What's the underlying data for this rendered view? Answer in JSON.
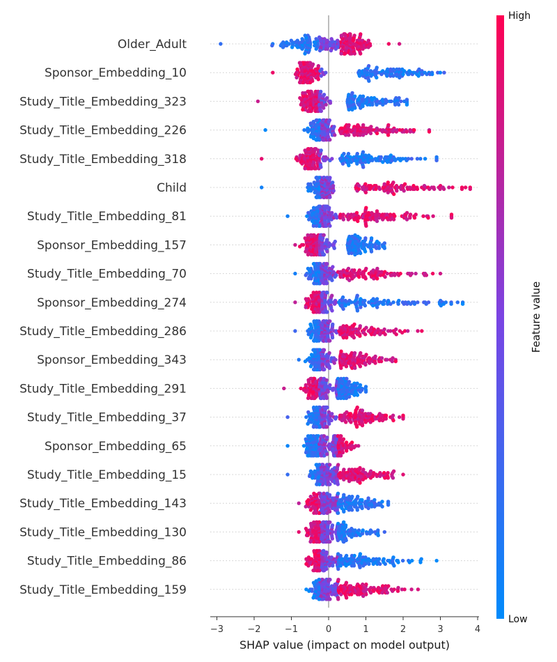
{
  "chart_data": {
    "type": "scatter",
    "subtype": "shap-beeswarm",
    "xlabel": "SHAP value (impact on model output)",
    "xlim": [
      -3.3,
      4.05
    ],
    "xticks": [
      -3,
      -2,
      -1,
      0,
      1,
      2,
      3,
      4
    ],
    "xtick_labels": [
      "−3",
      "−2",
      "−1",
      "0",
      "1",
      "2",
      "3",
      "4"
    ],
    "colorbar": {
      "title": "Feature value",
      "high_label": "High",
      "low_label": "Low",
      "high_color": "#ff0052",
      "low_color": "#008bfb"
    },
    "grid": false,
    "features": [
      {
        "name": "Older_Adult",
        "min": -2.9,
        "max": 1.9,
        "low_side": "neg",
        "peak": 0.6,
        "neg_peak": -0.5
      },
      {
        "name": "Sponsor_Embedding_10",
        "min": -1.5,
        "max": 3.1,
        "low_side": "pos",
        "peak": -0.6,
        "pos_peak": 0.9
      },
      {
        "name": "Study_Title_Embedding_323",
        "min": -1.9,
        "max": 2.1,
        "low_side": "pos",
        "peak": -0.4,
        "pos_peak": 0.6
      },
      {
        "name": "Study_Title_Embedding_226",
        "min": -1.7,
        "max": 2.7,
        "low_side": "neg",
        "peak": -0.2,
        "pos_peak": 0.4
      },
      {
        "name": "Study_Title_Embedding_318",
        "min": -1.8,
        "max": 2.9,
        "low_side": "pos",
        "peak": -0.4,
        "pos_peak": 0.4
      },
      {
        "name": "Child",
        "min": -1.8,
        "max": 3.8,
        "low_side": "neg",
        "peak": -0.2,
        "pos_peak": 0.8
      },
      {
        "name": "Study_Title_Embedding_81",
        "min": -1.1,
        "max": 3.3,
        "low_side": "neg",
        "peak": -0.2,
        "pos_peak": 0.4
      },
      {
        "name": "Sponsor_Embedding_157",
        "min": -0.9,
        "max": 1.5,
        "low_side": "pos",
        "peak": -0.3,
        "pos_peak": 0.6
      },
      {
        "name": "Study_Title_Embedding_70",
        "min": -0.9,
        "max": 3.0,
        "low_side": "neg",
        "peak": -0.2,
        "pos_peak": 0.4
      },
      {
        "name": "Sponsor_Embedding_274",
        "min": -0.9,
        "max": 3.6,
        "low_side": "pos",
        "peak": -0.2,
        "pos_peak": 0.4
      },
      {
        "name": "Study_Title_Embedding_286",
        "min": -0.9,
        "max": 2.5,
        "low_side": "neg",
        "peak": -0.2,
        "pos_peak": 0.4
      },
      {
        "name": "Sponsor_Embedding_343",
        "min": -0.8,
        "max": 1.8,
        "low_side": "neg",
        "peak": -0.2,
        "pos_peak": 0.4
      },
      {
        "name": "Study_Title_Embedding_291",
        "min": -1.2,
        "max": 1.0,
        "low_side": "pos",
        "peak": -0.3,
        "pos_peak": 0.3
      },
      {
        "name": "Study_Title_Embedding_37",
        "min": -1.1,
        "max": 2.0,
        "low_side": "neg",
        "peak": -0.2,
        "pos_peak": 0.4
      },
      {
        "name": "Sponsor_Embedding_65",
        "min": -1.1,
        "max": 0.8,
        "low_side": "neg",
        "peak": -0.3,
        "pos_peak": 0.2
      },
      {
        "name": "Study_Title_Embedding_15",
        "min": -1.1,
        "max": 2.0,
        "low_side": "neg",
        "peak": -0.1,
        "pos_peak": 0.3
      },
      {
        "name": "Study_Title_Embedding_143",
        "min": -0.8,
        "max": 1.6,
        "low_side": "pos",
        "peak": -0.2,
        "pos_peak": 0.3
      },
      {
        "name": "Study_Title_Embedding_130",
        "min": -0.8,
        "max": 1.5,
        "low_side": "pos",
        "peak": -0.2,
        "pos_peak": 0.3
      },
      {
        "name": "Study_Title_Embedding_86",
        "min": -0.6,
        "max": 2.9,
        "low_side": "pos",
        "peak": -0.2,
        "pos_peak": 0.3
      },
      {
        "name": "Study_Title_Embedding_159",
        "min": -0.6,
        "max": 2.4,
        "low_side": "neg",
        "peak": -0.1,
        "pos_peak": 0.3
      }
    ]
  }
}
